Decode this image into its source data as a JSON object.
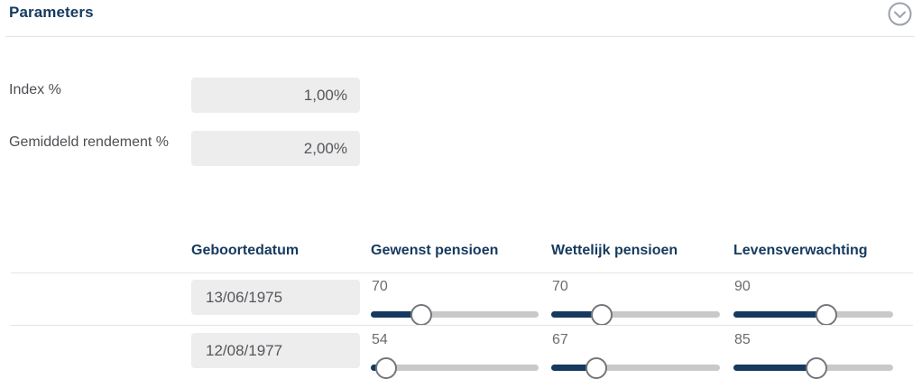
{
  "panel": {
    "title": "Parameters",
    "collapse_icon": "chevron-down-circle-icon"
  },
  "fields": {
    "index": {
      "label": "Index %",
      "value": "1,00%"
    },
    "rendement": {
      "label": "Gemiddeld rendement %",
      "value": "2,00%"
    }
  },
  "table": {
    "headers": {
      "birthdate": "Geboortedatum",
      "desired_pension": "Gewenst pensioen",
      "legal_pension": "Wettelijk pensioen",
      "life_expectancy": "Levensverwachting"
    },
    "rows": [
      {
        "birthdate": "13/06/1975",
        "sliders": [
          {
            "name": "gewenst-pensioen",
            "value": "70",
            "percent": 30
          },
          {
            "name": "wettelijk-pensioen",
            "value": "70",
            "percent": 30
          },
          {
            "name": "levensverwachting",
            "value": "90",
            "percent": 58
          }
        ]
      },
      {
        "birthdate": "12/08/1977",
        "sliders": [
          {
            "name": "gewenst-pensioen",
            "value": "54",
            "percent": 9
          },
          {
            "name": "wettelijk-pensioen",
            "value": "67",
            "percent": 27
          },
          {
            "name": "levensverwachting",
            "value": "85",
            "percent": 52
          }
        ]
      }
    ]
  },
  "colors": {
    "accent_navy": "#163a5f",
    "track_gray": "#c9c9c9",
    "input_bg": "#ededed",
    "divider": "#e4e4e4",
    "icon_gray": "#9ba1ac"
  }
}
